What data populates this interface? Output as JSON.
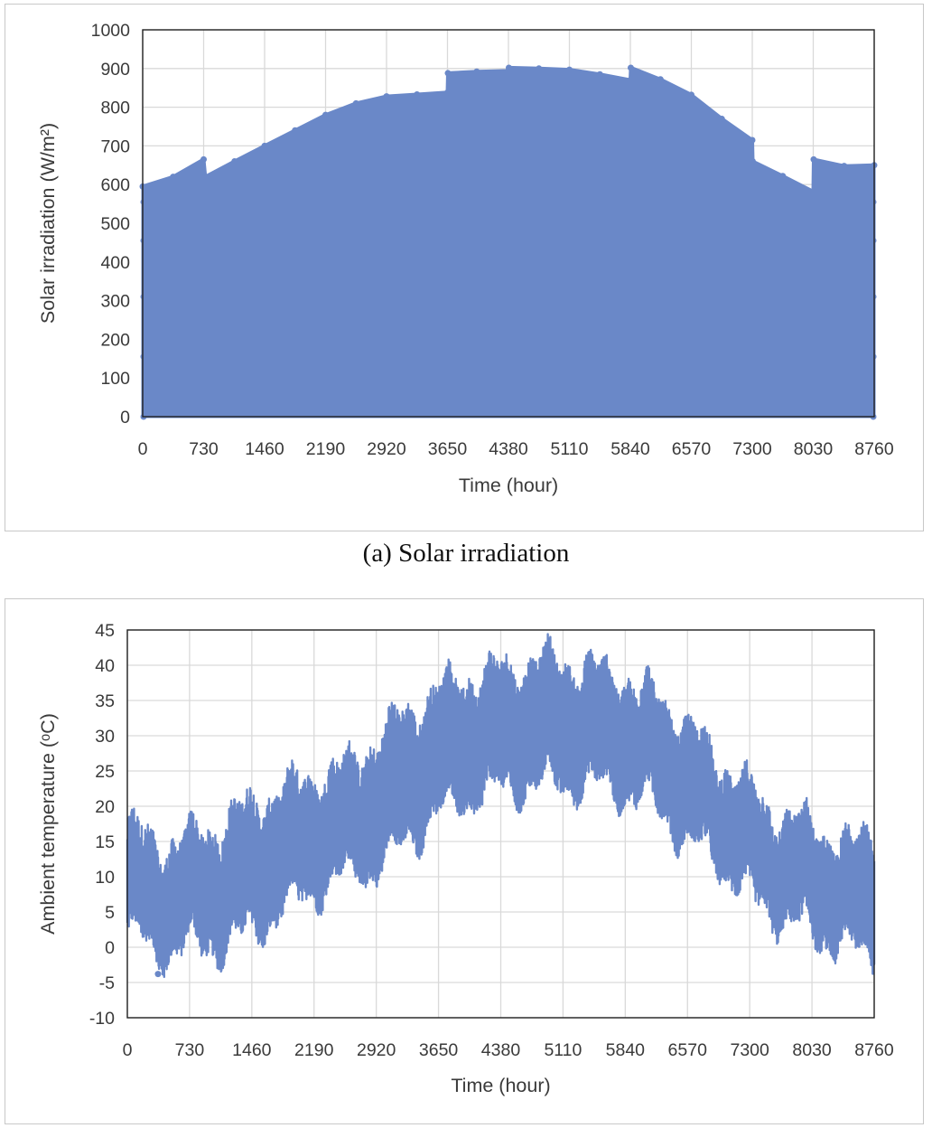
{
  "caption_a": "(a)  Solar irradiation",
  "chart_data": [
    {
      "type": "area",
      "xlabel": "Time (hour)",
      "ylabel": "Solar irradiation (W/m²)",
      "ylim": [
        0,
        1000
      ],
      "yticks": [
        0,
        100,
        200,
        300,
        400,
        500,
        600,
        700,
        800,
        900,
        1000
      ],
      "xlim": [
        0,
        8760
      ],
      "xticks": [
        0,
        730,
        1460,
        2190,
        2920,
        3650,
        4380,
        5110,
        5840,
        6570,
        7300,
        8030,
        8760
      ],
      "grid": true,
      "color": "#6a88c8",
      "envelope": {
        "x": [
          0,
          365,
          730,
          750,
          1100,
          1460,
          1825,
          2190,
          2555,
          2920,
          3285,
          3650,
          3655,
          4000,
          4380,
          4385,
          4745,
          5110,
          5475,
          5840,
          5845,
          6200,
          6570,
          6935,
          7300,
          7305,
          7665,
          8030,
          8035,
          8400,
          8760
        ],
        "y": [
          595,
          620,
          665,
          620,
          660,
          700,
          740,
          780,
          810,
          828,
          833,
          838,
          888,
          892,
          894,
          902,
          900,
          897,
          885,
          870,
          902,
          872,
          832,
          770,
          715,
          660,
          622,
          582,
          665,
          648,
          650
        ]
      }
    },
    {
      "type": "line",
      "xlabel": "Time (hour)",
      "ylabel": "Ambient temperature (ᵒC)",
      "ylim": [
        -10,
        45
      ],
      "yticks": [
        -10,
        -5,
        0,
        5,
        10,
        15,
        20,
        25,
        30,
        35,
        40,
        45
      ],
      "xlim": [
        0,
        8760
      ],
      "xticks": [
        0,
        730,
        1460,
        2190,
        2920,
        3650,
        4380,
        5110,
        5840,
        6570,
        7300,
        8030,
        8760
      ],
      "grid": true,
      "color": "#6a88c8",
      "daily_band": {
        "x": [
          0,
          365,
          730,
          1095,
          1460,
          1825,
          2190,
          2555,
          2920,
          3285,
          3650,
          4015,
          4380,
          4745,
          5110,
          5475,
          5840,
          6205,
          6570,
          6935,
          7300,
          7665,
          8030,
          8395,
          8760
        ],
        "min": [
          3,
          0,
          1,
          1,
          3,
          6,
          9,
          11,
          12,
          16,
          20,
          22,
          23,
          24,
          24,
          24,
          23,
          21,
          16,
          13,
          8,
          5,
          3,
          1,
          0
        ],
        "max": [
          16,
          13,
          14,
          16,
          19,
          21,
          23,
          24,
          28,
          32,
          35,
          37,
          38,
          39,
          39,
          38,
          37,
          34,
          30,
          25,
          21,
          17,
          16,
          13,
          15
        ],
        "observed_min": -3.8,
        "observed_max": 41
      }
    }
  ]
}
